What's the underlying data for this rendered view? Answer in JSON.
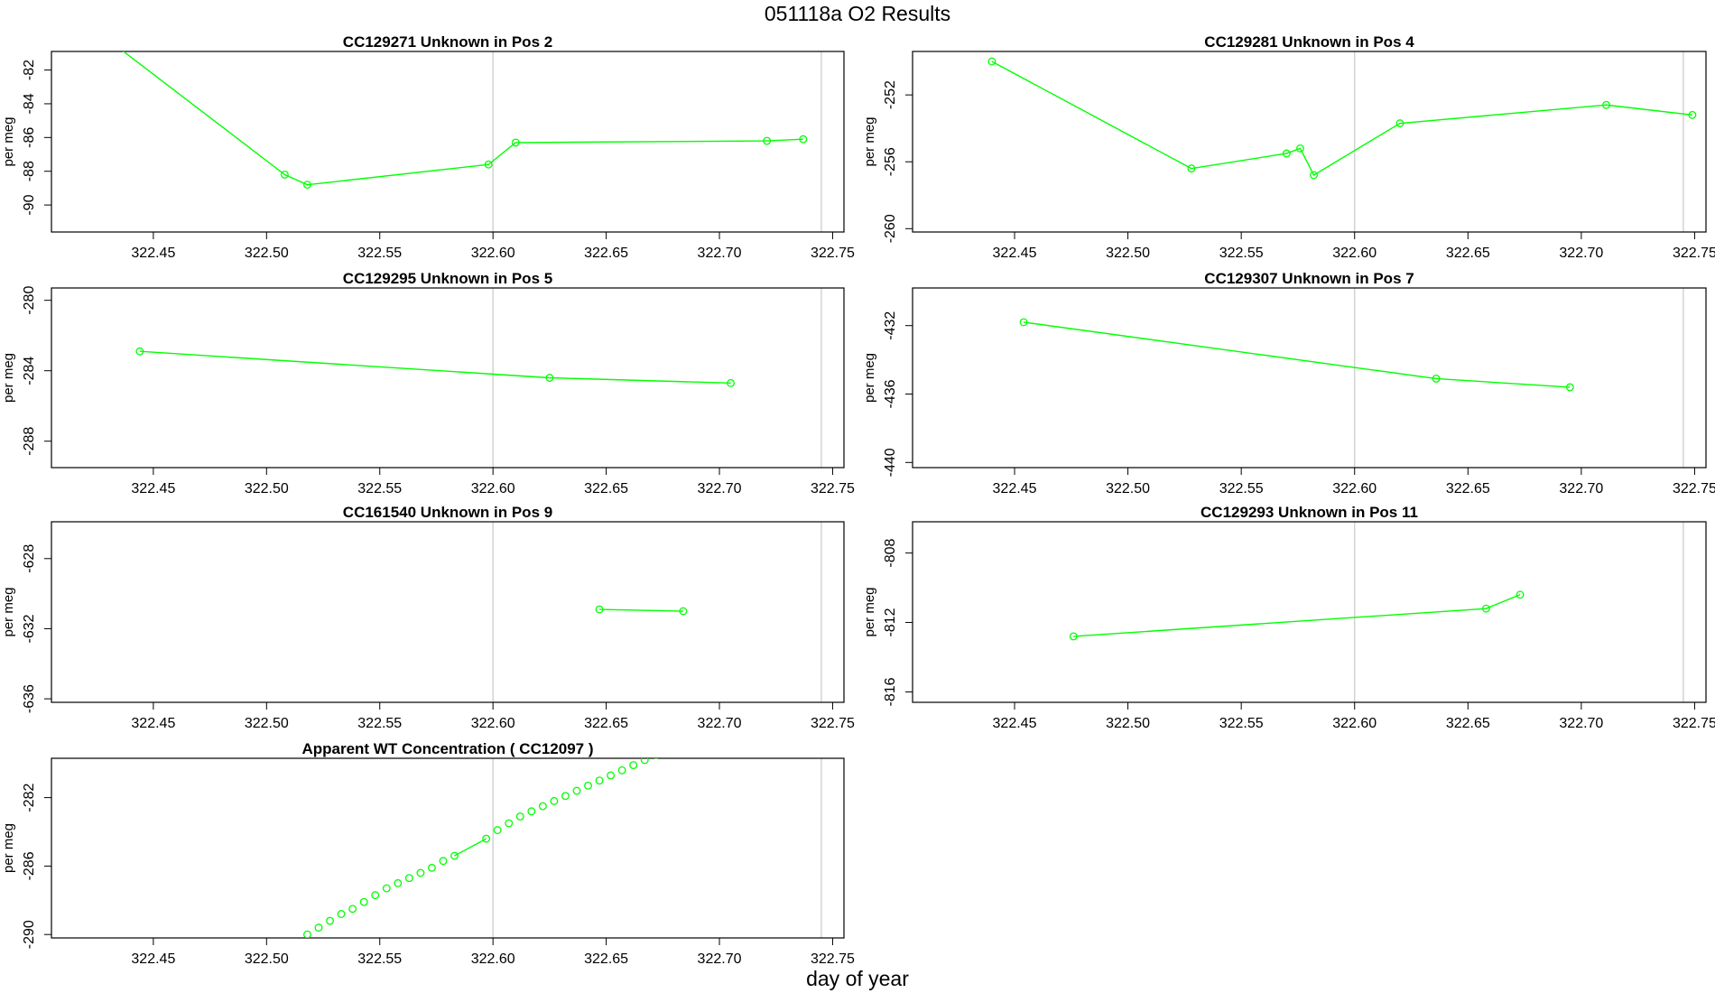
{
  "page": {
    "title": "051118a  O2 Results",
    "xlabel": "day of year"
  },
  "chart_data": [
    {
      "type": "line",
      "title": "CC129271    Unknown in Pos 2",
      "ylabel": "per meg",
      "xlim": [
        322.405,
        322.755
      ],
      "ylim": [
        -91.6,
        -80.9
      ],
      "xticks": [
        322.45,
        322.5,
        322.55,
        322.6,
        322.65,
        322.7,
        322.75
      ],
      "xtick_labels": [
        "322.45",
        "322.50",
        "322.55",
        "322.60",
        "322.65",
        "322.70",
        "322.75"
      ],
      "yticks": [
        -82,
        -84,
        -86,
        -88,
        -90
      ],
      "ytick_labels": [
        "-82",
        "-84",
        "-86",
        "-88",
        "-90"
      ],
      "vlines": [
        322.6,
        322.745
      ],
      "color": "#00ff00",
      "grid": false,
      "series": [
        {
          "x": [
            322.43,
            322.508,
            322.518,
            322.598,
            322.61,
            322.721,
            322.737
          ],
          "y": [
            -80.2,
            -88.2,
            -88.8,
            -87.6,
            -86.3,
            -86.2,
            -86.1
          ],
          "markers": [
            false,
            true,
            true,
            true,
            true,
            true,
            true
          ],
          "line": true
        }
      ]
    },
    {
      "type": "line",
      "title": "CC129281    Unknown in Pos 4",
      "ylabel": "per meg",
      "xlim": [
        322.405,
        322.755
      ],
      "ylim": [
        -260.2,
        -249.4
      ],
      "xticks": [
        322.45,
        322.5,
        322.55,
        322.6,
        322.65,
        322.7,
        322.75
      ],
      "xtick_labels": [
        "322.45",
        "322.50",
        "322.55",
        "322.60",
        "322.65",
        "322.70",
        "322.75"
      ],
      "yticks": [
        -252,
        -256,
        -260
      ],
      "ytick_labels": [
        "-252",
        "-256",
        "-260"
      ],
      "vlines": [
        322.6,
        322.745
      ],
      "color": "#00ff00",
      "grid": false,
      "series": [
        {
          "x": [
            322.44,
            322.528,
            322.57,
            322.576,
            322.582,
            322.62,
            322.711,
            322.749
          ],
          "y": [
            -250.0,
            -256.4,
            -255.5,
            -255.2,
            -256.8,
            -253.7,
            -252.6,
            -253.2
          ],
          "markers": [
            true,
            true,
            true,
            true,
            true,
            true,
            true,
            true
          ],
          "line": true
        }
      ]
    },
    {
      "type": "line",
      "title": "CC129295    Unknown in Pos 5",
      "ylabel": "per meg",
      "xlim": [
        322.405,
        322.755
      ],
      "ylim": [
        -289.5,
        -279.3
      ],
      "xticks": [
        322.45,
        322.5,
        322.55,
        322.6,
        322.65,
        322.7,
        322.75
      ],
      "xtick_labels": [
        "322.45",
        "322.50",
        "322.55",
        "322.60",
        "322.65",
        "322.70",
        "322.75"
      ],
      "yticks": [
        -280,
        -284,
        -288
      ],
      "ytick_labels": [
        "-280",
        "-284",
        "-288"
      ],
      "vlines": [
        322.6,
        322.745
      ],
      "color": "#00ff00",
      "grid": false,
      "series": [
        {
          "x": [
            322.444,
            322.625,
            322.705
          ],
          "y": [
            -282.9,
            -284.4,
            -284.7
          ],
          "markers": [
            true,
            true,
            true
          ],
          "line": true
        }
      ]
    },
    {
      "type": "line",
      "title": "CC129307    Unknown in Pos 7",
      "ylabel": "per meg",
      "xlim": [
        322.405,
        322.755
      ],
      "ylim": [
        -440.3,
        -429.8
      ],
      "xticks": [
        322.45,
        322.5,
        322.55,
        322.6,
        322.65,
        322.7,
        322.75
      ],
      "xtick_labels": [
        "322.45",
        "322.50",
        "322.55",
        "322.60",
        "322.65",
        "322.70",
        "322.75"
      ],
      "yticks": [
        -432,
        -436,
        -440
      ],
      "ytick_labels": [
        "-432",
        "-436",
        "-440"
      ],
      "vlines": [
        322.6,
        322.745
      ],
      "color": "#00ff00",
      "grid": false,
      "series": [
        {
          "x": [
            322.454,
            322.636,
            322.695
          ],
          "y": [
            -431.8,
            -435.1,
            -435.6
          ],
          "markers": [
            true,
            true,
            true
          ],
          "line": true
        }
      ]
    },
    {
      "type": "line",
      "title": "CC161540    Unknown in Pos 9",
      "ylabel": "per meg",
      "xlim": [
        322.405,
        322.755
      ],
      "ylim": [
        -636.2,
        -625.9
      ],
      "xticks": [
        322.45,
        322.5,
        322.55,
        322.6,
        322.65,
        322.7,
        322.75
      ],
      "xtick_labels": [
        "322.45",
        "322.50",
        "322.55",
        "322.60",
        "322.65",
        "322.70",
        "322.75"
      ],
      "yticks": [
        -628,
        -632,
        -636
      ],
      "ytick_labels": [
        "-628",
        "-632",
        "-636"
      ],
      "vlines": [
        322.6,
        322.745
      ],
      "color": "#00ff00",
      "grid": false,
      "series": [
        {
          "x": [
            322.647,
            322.684
          ],
          "y": [
            -630.9,
            -631.0
          ],
          "markers": [
            true,
            true
          ],
          "line": true
        }
      ]
    },
    {
      "type": "line",
      "title": "CC129293    Unknown in Pos 11",
      "ylabel": "per meg",
      "xlim": [
        322.405,
        322.755
      ],
      "ylim": [
        -816.6,
        -806.2
      ],
      "xticks": [
        322.45,
        322.5,
        322.55,
        322.6,
        322.65,
        322.7,
        322.75
      ],
      "xtick_labels": [
        "322.45",
        "322.50",
        "322.55",
        "322.60",
        "322.65",
        "322.70",
        "322.75"
      ],
      "yticks": [
        -808,
        -812,
        -816
      ],
      "ytick_labels": [
        "-808",
        "-812",
        "-816"
      ],
      "vlines": [
        322.6,
        322.745
      ],
      "color": "#00ff00",
      "grid": false,
      "series": [
        {
          "x": [
            322.476,
            322.658,
            322.673
          ],
          "y": [
            -812.8,
            -811.2,
            -810.4
          ],
          "markers": [
            true,
            true,
            true
          ],
          "line": true
        }
      ]
    },
    {
      "type": "line",
      "title": "Apparent WT Concentration ( CC12097 )",
      "ylabel": "per meg",
      "xlim": [
        322.405,
        322.755
      ],
      "ylim": [
        -290.2,
        -279.7
      ],
      "xticks": [
        322.45,
        322.5,
        322.55,
        322.6,
        322.65,
        322.7,
        322.75
      ],
      "xtick_labels": [
        "322.45",
        "322.50",
        "322.55",
        "322.60",
        "322.65",
        "322.70",
        "322.75"
      ],
      "yticks": [
        -282,
        -286,
        -290
      ],
      "ytick_labels": [
        "-282",
        "-286",
        "-290"
      ],
      "vlines": [
        322.6,
        322.745
      ],
      "color": "#00ff00",
      "grid": false,
      "series": [
        {
          "x": [
            322.518,
            322.523,
            322.528,
            322.533,
            322.538,
            322.543,
            322.548,
            322.553,
            322.558,
            322.563,
            322.568,
            322.573,
            322.578,
            322.583
          ],
          "y": [
            -290.0,
            -289.6,
            -289.2,
            -288.8,
            -288.5,
            -288.1,
            -287.7,
            -287.3,
            -287.0,
            -286.7,
            -286.4,
            -286.1,
            -285.7,
            -285.4
          ],
          "markers": true,
          "line": false
        },
        {
          "x": [
            322.583,
            322.597
          ],
          "y": [
            -285.4,
            -284.4
          ],
          "markers": false,
          "line": true
        },
        {
          "x": [
            322.597,
            322.602,
            322.607,
            322.612,
            322.617,
            322.622,
            322.627,
            322.632,
            322.637,
            322.642,
            322.647,
            322.652,
            322.657,
            322.662,
            322.667,
            322.672,
            322.677,
            322.682
          ],
          "y": [
            -284.4,
            -283.9,
            -283.5,
            -283.1,
            -282.8,
            -282.5,
            -282.2,
            -281.9,
            -281.6,
            -281.3,
            -281.0,
            -280.7,
            -280.4,
            -280.1,
            -279.8,
            -279.5,
            -279.2,
            -278.9
          ],
          "markers": true,
          "line": false
        }
      ]
    }
  ]
}
